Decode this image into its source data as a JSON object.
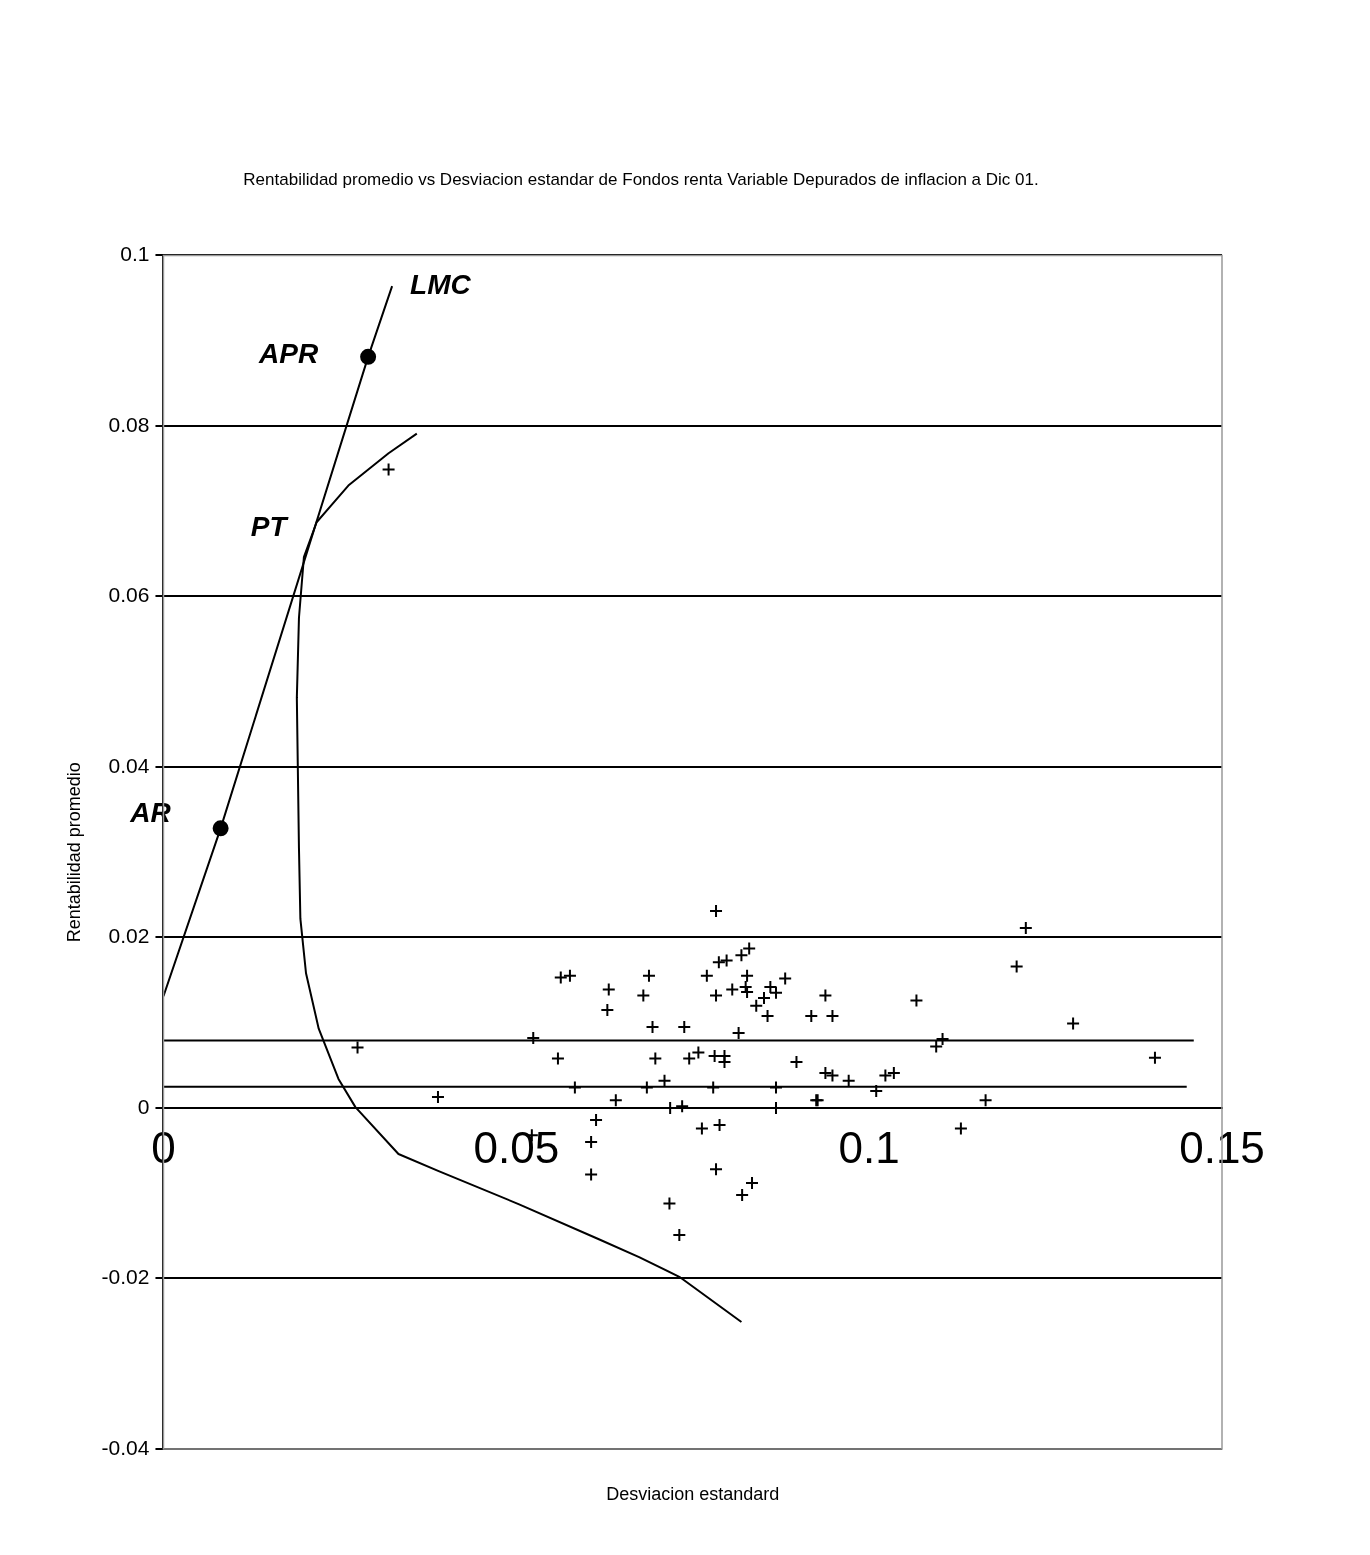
{
  "chart_data": {
    "type": "scatter",
    "title": "Rentabilidad promedio vs Desviacion estandar de Fondos renta Variable Depurados de inflacion a Dic 01.",
    "xlabel": "Desviacion estandard",
    "ylabel": "Rentabilidad promedio",
    "xlim": [
      0,
      0.15
    ],
    "xticks": [
      0,
      0.05,
      0.1,
      0.15
    ],
    "ylim": [
      -0.04,
      0.1
    ],
    "yticks": [
      -0.04,
      -0.02,
      0,
      0.02,
      0.04,
      0.06,
      0.08,
      0.1
    ],
    "grid": "y",
    "legend": false,
    "marker": "cross",
    "series": [
      {
        "type": "line",
        "color": "#000000",
        "marker": "none",
        "line_style": "solid",
        "x": [
          0,
          0.0081,
          0.029,
          0.0324
        ],
        "values": [
          0.0131,
          0.0328,
          0.0881,
          0.0964
        ]
      },
      {
        "type": "line",
        "color": "#000000",
        "marker": "none",
        "line_style": "solid",
        "x": [
          0.0359,
          0.0319,
          0.0262,
          0.0217,
          0.0199,
          0.0192,
          0.0189,
          0.0192,
          0.0194,
          0.0202,
          0.022,
          0.0248,
          0.0272,
          0.0333,
          0.039,
          0.0504,
          0.0617,
          0.0674,
          0.0731,
          0.0819
        ],
        "values": [
          0.0791,
          0.0768,
          0.073,
          0.0687,
          0.0646,
          0.0575,
          0.0481,
          0.0305,
          0.0222,
          0.0158,
          0.0093,
          0.0034,
          0.0001,
          -0.0054,
          -0.0074,
          -0.0113,
          -0.0154,
          -0.0175,
          -0.0198,
          -0.0251
        ]
      },
      {
        "type": "line",
        "color": "#000000",
        "marker": "none",
        "line_style": "solid",
        "x": [
          0,
          0.146
        ],
        "values": [
          0.0079,
          0.0079
        ]
      },
      {
        "type": "line",
        "color": "#000000",
        "marker": "none",
        "line_style": "solid",
        "x": [
          0,
          0.145
        ],
        "values": [
          0.0025,
          0.0025
        ]
      },
      {
        "type": "scatter",
        "color": "#000000",
        "marker": "circle",
        "x": [
          0.0081,
          0.029
        ],
        "values": [
          0.0328,
          0.0881
        ]
      },
      {
        "type": "scatter",
        "color": "#000000",
        "x": [
          0.0319,
          0.0275,
          0.0389,
          0.0783,
          0.0563,
          0.0576,
          0.0631,
          0.0629,
          0.0688,
          0.068,
          0.0693,
          0.0738,
          0.077,
          0.0787,
          0.0798,
          0.0819,
          0.083,
          0.0783,
          0.0827,
          0.0806,
          0.0825,
          0.0827,
          0.084,
          0.0851,
          0.086,
          0.0868,
          0.0881,
          0.0856,
          0.0918,
          0.0815,
          0.0559,
          0.0524,
          0.0697,
          0.0745,
          0.0758,
          0.0781,
          0.0795,
          0.0795,
          0.0897,
          0.071,
          0.0583,
          0.0685,
          0.0779,
          0.0868,
          0.0641,
          0.0925,
          0.0718,
          0.0735,
          0.0868,
          0.0613,
          0.0522,
          0.0763,
          0.0788,
          0.0783,
          0.082,
          0.0717,
          0.0731,
          0.0606,
          0.0606,
          0.0834,
          0.1222,
          0.1209,
          0.0938,
          0.0948,
          0.1067,
          0.1289,
          0.1095,
          0.1104,
          0.1405,
          0.0938,
          0.0948,
          0.0971,
          0.101,
          0.1023,
          0.1035,
          0.0927,
          0.1165,
          0.113
        ],
        "values": [
          0.0749,
          0.0071,
          0.0013,
          0.0231,
          0.0153,
          0.0155,
          0.0139,
          0.0115,
          0.0155,
          0.0132,
          0.0095,
          0.0095,
          0.0155,
          0.0171,
          0.0173,
          0.0179,
          0.0187,
          0.0132,
          0.0155,
          0.0139,
          0.0142,
          0.0136,
          0.012,
          0.0129,
          0.0142,
          0.0135,
          0.0152,
          0.0108,
          0.0108,
          0.0088,
          0.0058,
          0.0082,
          0.0058,
          0.0058,
          0.0065,
          0.0061,
          0.0061,
          0.0054,
          0.0054,
          0.0032,
          0.0024,
          0.0024,
          0.0024,
          0.0024,
          0.0009,
          0.0009,
          0,
          0.0002,
          0,
          -0.0014,
          -0.0032,
          -0.0024,
          -0.002,
          -0.0072,
          -0.0102,
          -0.0112,
          -0.0149,
          -0.004,
          -0.0078,
          -0.0088,
          0.0211,
          0.0166,
          0.0132,
          0.0108,
          0.0126,
          0.0099,
          0.0072,
          0.0081,
          0.0059,
          0.0041,
          0.0038,
          0.0032,
          0.002,
          0.0038,
          0.0041,
          0.0009,
          0.0009,
          -0.0024
        ]
      }
    ],
    "annotations": [
      {
        "text": "LMC",
        "x": 0.0324,
        "y": 0.0964
      },
      {
        "text": "APR",
        "x": 0.029,
        "y": 0.0881
      },
      {
        "text": "PT",
        "x": 0.0217,
        "y": 0.0675
      },
      {
        "text": "AR",
        "x": 0.0081,
        "y": 0.0328
      }
    ]
  }
}
